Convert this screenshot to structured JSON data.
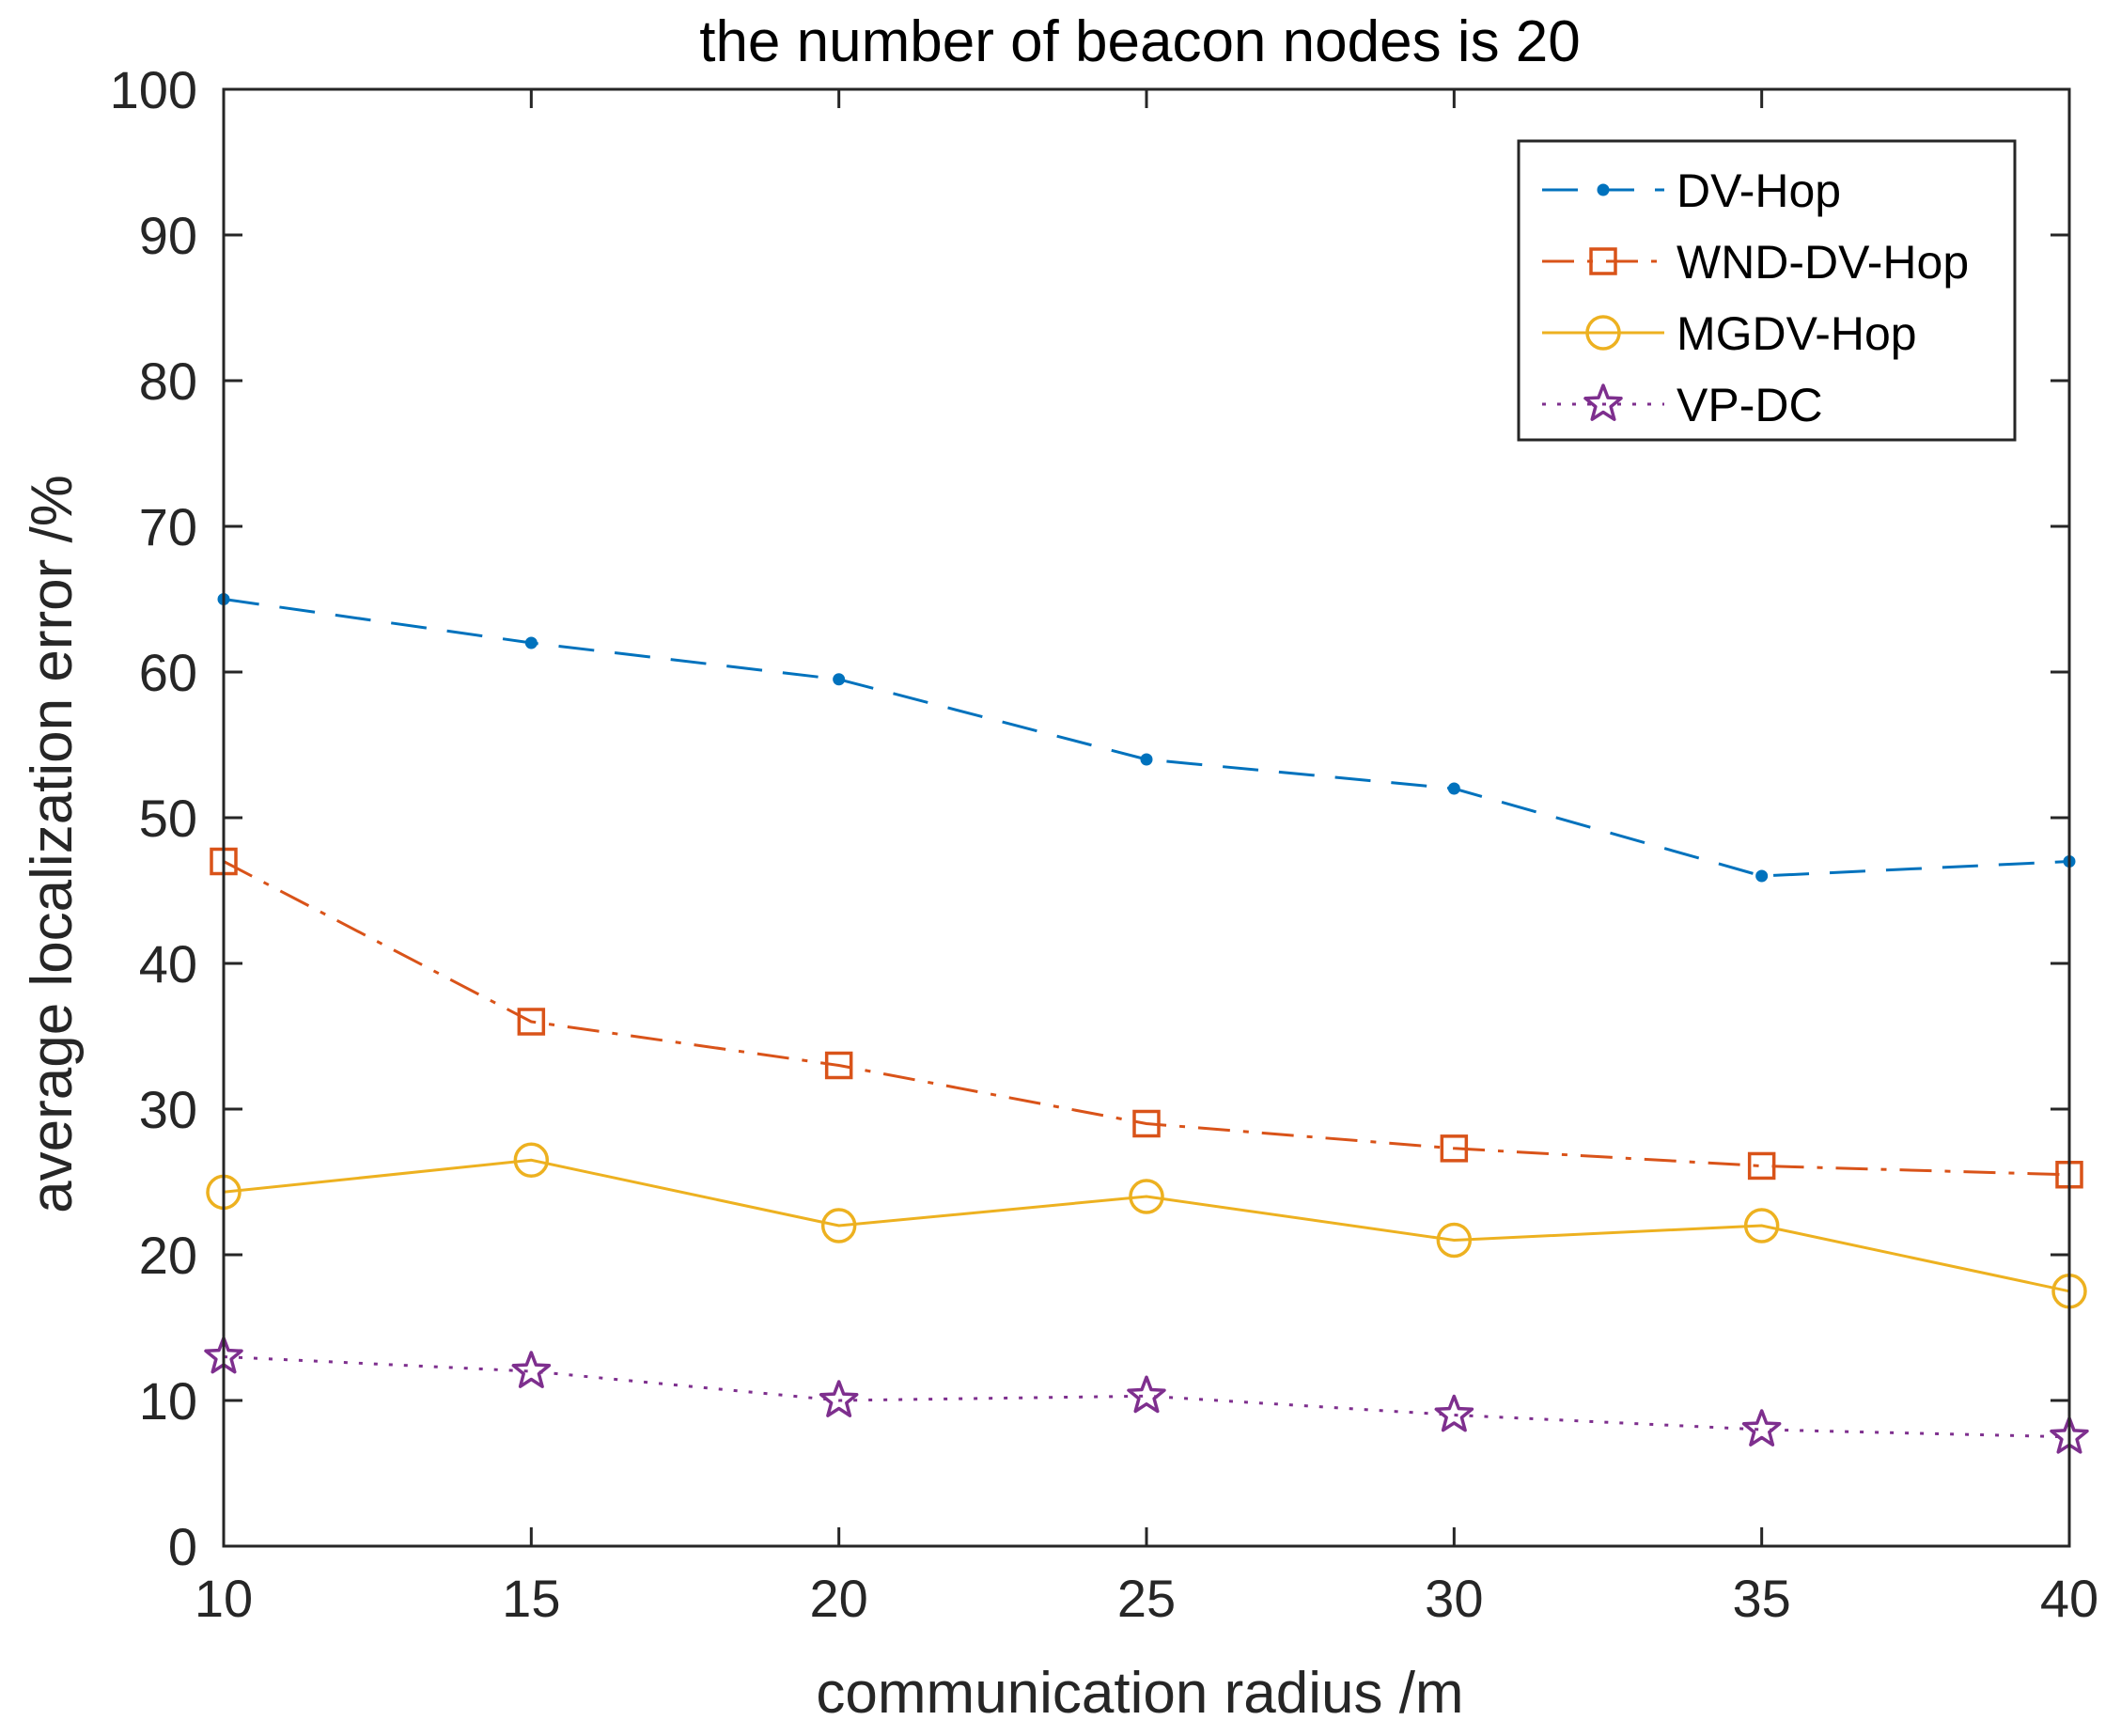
{
  "chart_data": {
    "type": "line",
    "title": "the number of beacon nodes is 20",
    "xlabel": "communication radius /m",
    "ylabel": "average localization error /%",
    "xlim": [
      10,
      40
    ],
    "ylim": [
      0,
      100
    ],
    "xticks": [
      10,
      15,
      20,
      25,
      30,
      35,
      40
    ],
    "yticks": [
      0,
      10,
      20,
      30,
      40,
      50,
      60,
      70,
      80,
      90,
      100
    ],
    "grid": false,
    "legend_position": "top-right",
    "x": [
      10,
      15,
      20,
      25,
      30,
      35,
      40
    ],
    "series": [
      {
        "name": "DV-Hop",
        "color": "#0072BD",
        "line_style": "dashed",
        "marker": "dot",
        "values": [
          65,
          62,
          59.5,
          54,
          52,
          46,
          47
        ]
      },
      {
        "name": "WND-DV-Hop",
        "color": "#D95319",
        "line_style": "dash-dot",
        "marker": "square",
        "values": [
          47,
          36,
          33,
          29,
          27.3,
          26.1,
          25.5
        ]
      },
      {
        "name": "MGDV-Hop",
        "color": "#EDB120",
        "line_style": "solid",
        "marker": "circle",
        "values": [
          24.3,
          26.5,
          22,
          24,
          21,
          22,
          17.5
        ]
      },
      {
        "name": "VP-DC",
        "color": "#7E2F8E",
        "line_style": "dotted",
        "marker": "star",
        "values": [
          13,
          12,
          10,
          10.3,
          9,
          8,
          7.5
        ]
      }
    ]
  }
}
